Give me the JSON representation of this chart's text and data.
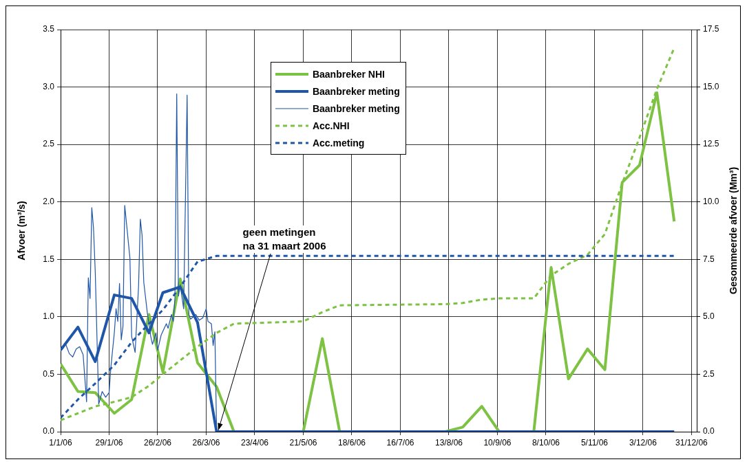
{
  "chart_data": {
    "type": "line",
    "xlim": [
      "2006-01-01",
      "2007-01-03"
    ],
    "xticks": [
      {
        "value": "2006-01-01",
        "label": "1/1/06"
      },
      {
        "value": "2006-01-29",
        "label": "29/1/06"
      },
      {
        "value": "2006-02-26",
        "label": "26/2/06"
      },
      {
        "value": "2006-03-26",
        "label": "26/3/06"
      },
      {
        "value": "2006-04-23",
        "label": "23/4/06"
      },
      {
        "value": "2006-05-21",
        "label": "21/5/06"
      },
      {
        "value": "2006-06-18",
        "label": "18/6/06"
      },
      {
        "value": "2006-07-16",
        "label": "16/7/06"
      },
      {
        "value": "2006-08-13",
        "label": "13/8/06"
      },
      {
        "value": "2006-09-10",
        "label": "10/9/06"
      },
      {
        "value": "2006-10-08",
        "label": "8/10/06"
      },
      {
        "value": "2006-11-05",
        "label": "5/11/06"
      },
      {
        "value": "2006-12-03",
        "label": "3/12/06"
      },
      {
        "value": "2006-12-31",
        "label": "31/12/06"
      }
    ],
    "ylabel": "Afvoer (m³/s)",
    "y2label": "Gesommeerde afvoer (Mm³)",
    "ylim": [
      0,
      3.5
    ],
    "yticks": [
      {
        "value": 0,
        "label": "0.0"
      },
      {
        "value": 0.5,
        "label": "0.5"
      },
      {
        "value": 1,
        "label": "1.0"
      },
      {
        "value": 1.5,
        "label": "1.5"
      },
      {
        "value": 2,
        "label": "2.0"
      },
      {
        "value": 2.5,
        "label": "2.5"
      },
      {
        "value": 3,
        "label": "3.0"
      },
      {
        "value": 3.5,
        "label": "3.5"
      }
    ],
    "y2lim": [
      0,
      17.5
    ],
    "y2ticks": [
      {
        "value": 0,
        "label": "0.0"
      },
      {
        "value": 2.5,
        "label": "2.5"
      },
      {
        "value": 5,
        "label": "5.0"
      },
      {
        "value": 7.5,
        "label": "7.5"
      },
      {
        "value": 10,
        "label": "10.0"
      },
      {
        "value": 12.5,
        "label": "12.5"
      },
      {
        "value": 15,
        "label": "15.0"
      },
      {
        "value": 17.5,
        "label": "17.5"
      }
    ],
    "grid": true,
    "legend": "top",
    "marker": "none",
    "annotations": [
      {
        "text": "geen metingen\nna 31 maart 2006",
        "x": "2006-04-01",
        "y": 0
      }
    ],
    "series": [
      {
        "name": "Baanbreker NHI",
        "color": "#7dc242",
        "line_style": "solid",
        "x": [
          "2006-01-01",
          "2006-01-11",
          "2006-01-21",
          "2006-02-01",
          "2006-02-11",
          "2006-02-21",
          "2006-03-01",
          "2006-03-11",
          "2006-03-21",
          "2006-04-01",
          "2006-04-11",
          "2006-05-21",
          "2006-06-01",
          "2006-06-11",
          "2006-08-11",
          "2006-08-21",
          "2006-09-01",
          "2006-09-11",
          "2006-10-01",
          "2006-10-11",
          "2006-10-21",
          "2006-11-01",
          "2006-11-11",
          "2006-11-21",
          "2006-12-01",
          "2006-12-11",
          "2006-12-21"
        ],
        "values": [
          0.59,
          0.35,
          0.34,
          0.16,
          0.28,
          1.02,
          0.52,
          1.33,
          0.6,
          0.39,
          0,
          0,
          0.81,
          0,
          0,
          0.04,
          0.22,
          0,
          0,
          1.43,
          0.46,
          0.72,
          0.54,
          2.17,
          2.32,
          2.95,
          1.83
        ]
      },
      {
        "name": "Baanbreker meting",
        "color": "#1f56a8",
        "line_style": "solid",
        "x": [
          "2006-01-01",
          "2006-01-11",
          "2006-01-21",
          "2006-02-01",
          "2006-02-11",
          "2006-02-21",
          "2006-03-01",
          "2006-03-11",
          "2006-03-21",
          "2006-04-01",
          "2006-12-21"
        ],
        "values": [
          0.71,
          0.91,
          0.61,
          1.19,
          1.16,
          0.86,
          1.21,
          1.26,
          0.95,
          0,
          0
        ]
      },
      {
        "name": "Baanbreker meting",
        "color": "#1f56a8",
        "line_style": "solid",
        "x": [
          "2006-01-01",
          "2006-01-04",
          "2006-01-06",
          "2006-01-08",
          "2006-01-10",
          "2006-01-12",
          "2006-01-14",
          "2006-01-16",
          "2006-01-17",
          "2006-01-18",
          "2006-01-19",
          "2006-01-20",
          "2006-01-21",
          "2006-01-23",
          "2006-01-25",
          "2006-01-27",
          "2006-01-29",
          "2006-01-30",
          "2006-02-01",
          "2006-02-02",
          "2006-02-03",
          "2006-02-04",
          "2006-02-05",
          "2006-02-06",
          "2006-02-07",
          "2006-02-10",
          "2006-02-11",
          "2006-02-13",
          "2006-02-15",
          "2006-02-16",
          "2006-02-17",
          "2006-02-18",
          "2006-02-20",
          "2006-02-22",
          "2006-02-23",
          "2006-02-25",
          "2006-02-26",
          "2006-02-28",
          "2006-03-03",
          "2006-03-04",
          "2006-03-06",
          "2006-03-07",
          "2006-03-08",
          "2006-03-09",
          "2006-03-10",
          "2006-03-11",
          "2006-03-13",
          "2006-03-15",
          "2006-03-16",
          "2006-03-17",
          "2006-03-20",
          "2006-03-22",
          "2006-03-24",
          "2006-03-26",
          "2006-03-27",
          "2006-03-29",
          "2006-03-30",
          "2006-03-31",
          "2006-04-01"
        ],
        "values": [
          0.7,
          0.76,
          0.68,
          0.65,
          0.72,
          0.74,
          0.67,
          0.26,
          1.34,
          1.16,
          1.95,
          1.77,
          1.39,
          0.24,
          0.35,
          0.3,
          0.34,
          0.56,
          0.86,
          1.07,
          0.96,
          1.29,
          0.8,
          0.92,
          1.97,
          1.51,
          0.83,
          0.69,
          1.27,
          1.85,
          1.71,
          1.3,
          1.04,
          0.83,
          0.76,
          0.86,
          0.71,
          0.84,
          0.94,
          0.9,
          1.02,
          0.96,
          1.17,
          2.94,
          1.18,
          1.28,
          1.07,
          2.93,
          1.02,
          0.98,
          1.02,
          0.97,
          0.99,
          1.07,
          0.96,
          0.94,
          0.75,
          0.87,
          0
        ]
      },
      {
        "name": "Acc.NHI",
        "color": "#7dc242",
        "line_style": "dashed",
        "axis": "y2",
        "x": [
          "2006-01-01",
          "2006-01-11",
          "2006-01-21",
          "2006-02-01",
          "2006-02-11",
          "2006-02-21",
          "2006-03-01",
          "2006-03-11",
          "2006-03-21",
          "2006-04-01",
          "2006-04-11",
          "2006-05-21",
          "2006-06-01",
          "2006-06-11",
          "2006-08-11",
          "2006-08-21",
          "2006-09-01",
          "2006-09-11",
          "2006-10-01",
          "2006-10-11",
          "2006-10-21",
          "2006-11-01",
          "2006-11-11",
          "2006-11-21",
          "2006-12-01",
          "2006-12-11",
          "2006-12-21"
        ],
        "values": [
          0.5,
          0.8,
          1.1,
          1.3,
          1.5,
          2,
          2.5,
          3.1,
          3.7,
          4.3,
          4.7,
          4.8,
          5.2,
          5.5,
          5.55,
          5.6,
          5.75,
          5.8,
          5.8,
          6.8,
          7.3,
          7.7,
          8.6,
          10.8,
          12.8,
          14.9,
          16.7
        ]
      },
      {
        "name": "Acc.meting",
        "color": "#1f56a8",
        "line_style": "dashed",
        "axis": "y2",
        "x": [
          "2006-01-01",
          "2006-01-11",
          "2006-01-21",
          "2006-02-01",
          "2006-02-11",
          "2006-02-21",
          "2006-03-01",
          "2006-03-11",
          "2006-03-21",
          "2006-04-01",
          "2006-12-21"
        ],
        "values": [
          0.6,
          1.4,
          2.1,
          2.9,
          3.9,
          4.7,
          5.3,
          6.3,
          7.4,
          7.65,
          7.65
        ]
      }
    ]
  }
}
